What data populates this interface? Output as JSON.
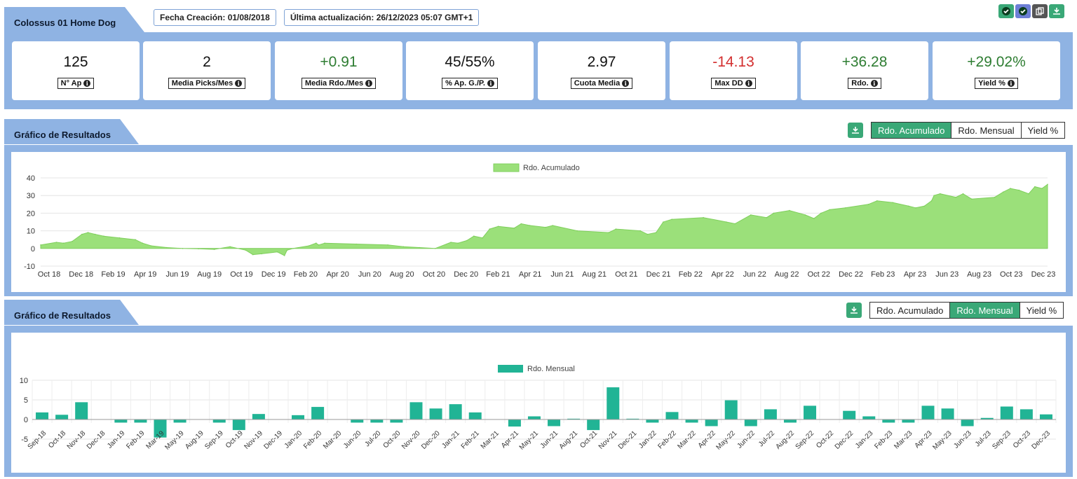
{
  "header": {
    "title": "Colossus 01 Home Dog",
    "creation": "Fecha Creación: 01/08/2018",
    "updated": "Última actualización: 26/12/2023 05:07 GMT+1"
  },
  "colors": {
    "accent": "#3aa877",
    "panel": "#8fb3e3",
    "positive": "#2e7d32",
    "negative": "#d32f2f",
    "area": "#9be07a",
    "bars": "#21b495"
  },
  "top_icons": [
    "check-icon",
    "check-icon",
    "copy-icon",
    "download-icon"
  ],
  "stats": [
    {
      "value": "125",
      "label": "N° Ap",
      "tone": "neutral"
    },
    {
      "value": "2",
      "label": "Media Picks/Mes",
      "tone": "neutral"
    },
    {
      "value": "+0.91",
      "label": "Media Rdo./Mes",
      "tone": "positive"
    },
    {
      "value": "45/55%",
      "label": "% Ap. G./P.",
      "tone": "neutral"
    },
    {
      "value": "2.97",
      "label": "Cuota Media",
      "tone": "neutral"
    },
    {
      "value": "-14.13",
      "label": "Max DD",
      "tone": "negative"
    },
    {
      "value": "+36.28",
      "label": "Rdo.",
      "tone": "positive"
    },
    {
      "value": "+29.02%",
      "label": "Yield %",
      "tone": "positive"
    }
  ],
  "section1": {
    "title": "Gráfico de Resultados",
    "buttons": [
      "Rdo. Acumulado",
      "Rdo. Mensual",
      "Yield %"
    ],
    "active": 0
  },
  "section2": {
    "title": "Gráfico de Resultados",
    "buttons": [
      "Rdo. Acumulado",
      "Rdo. Mensual",
      "Yield %"
    ],
    "active": 1
  },
  "chart_data": [
    {
      "type": "area",
      "legend": "Rdo. Acumulado",
      "legend_position": "top-center",
      "grid": true,
      "ylim": [
        -10,
        40
      ],
      "yticks": [
        -10,
        0,
        10,
        20,
        30,
        40
      ],
      "xlabels": [
        "Oct 18",
        "Dec 18",
        "Feb 19",
        "Apr 19",
        "Jun 19",
        "Aug 19",
        "Oct 19",
        "Dec 19",
        "Feb 20",
        "Apr 20",
        "Jun 20",
        "Aug 20",
        "Oct 20",
        "Dec 20",
        "Feb 21",
        "Apr 21",
        "Jun 21",
        "Aug 21",
        "Oct 21",
        "Dec 21",
        "Feb 22",
        "Apr 22",
        "Jun 22",
        "Aug 22",
        "Oct 22",
        "Dec 22",
        "Feb 23",
        "Apr 23",
        "Jun 23",
        "Aug 23",
        "Oct 23",
        "Dec 23"
      ],
      "x": [
        "2018-09-01",
        "2018-10-01",
        "2018-10-15",
        "2018-11-01",
        "2018-11-20",
        "2018-12-01",
        "2018-12-15",
        "2019-01-01",
        "2019-02-01",
        "2019-03-01",
        "2019-03-15",
        "2019-04-01",
        "2019-05-01",
        "2019-06-01",
        "2019-07-01",
        "2019-08-01",
        "2019-09-01",
        "2019-10-01",
        "2019-10-15",
        "2019-11-01",
        "2019-12-01",
        "2019-12-15",
        "2019-12-20",
        "2020-01-01",
        "2020-02-01",
        "2020-02-15",
        "2020-02-20",
        "2020-03-01",
        "2020-05-01",
        "2020-07-01",
        "2020-08-01",
        "2020-09-01",
        "2020-10-01",
        "2020-11-01",
        "2020-11-15",
        "2020-12-01",
        "2020-12-15",
        "2021-01-01",
        "2021-01-15",
        "2021-02-01",
        "2021-03-01",
        "2021-03-15",
        "2021-04-01",
        "2021-05-01",
        "2021-05-15",
        "2021-07-01",
        "2021-09-01",
        "2021-09-15",
        "2021-11-01",
        "2021-11-15",
        "2021-12-01",
        "2021-12-15",
        "2022-01-01",
        "2022-03-01",
        "2022-04-15",
        "2022-05-01",
        "2022-06-01",
        "2022-07-01",
        "2022-07-15",
        "2022-08-15",
        "2022-09-15",
        "2022-10-01",
        "2022-10-15",
        "2022-11-01",
        "2022-12-01",
        "2023-01-15",
        "2023-02-01",
        "2023-03-01",
        "2023-04-01",
        "2023-04-15",
        "2023-05-01",
        "2023-05-15",
        "2023-05-20",
        "2023-06-01",
        "2023-07-01",
        "2023-07-15",
        "2023-08-01",
        "2023-09-15",
        "2023-10-01",
        "2023-10-15",
        "2023-11-01",
        "2023-11-20",
        "2023-12-01",
        "2023-12-15",
        "2023-12-26"
      ],
      "y": [
        2,
        3.5,
        3,
        4,
        8,
        9,
        8,
        7,
        6,
        5,
        3,
        1.5,
        0.5,
        0,
        -0.2,
        -0.5,
        1,
        -1,
        -3.5,
        -3,
        -2,
        -4,
        -1,
        0,
        1.5,
        3,
        2,
        3,
        2.5,
        2,
        1,
        0.5,
        0,
        3.5,
        3,
        4.5,
        7,
        6,
        11,
        12.5,
        11.5,
        14,
        13,
        12,
        13,
        10,
        9,
        11,
        10,
        8,
        9,
        15,
        16.5,
        17.5,
        15,
        14,
        19,
        17.5,
        20,
        21.5,
        19,
        17,
        20,
        22,
        23,
        25,
        27,
        26,
        24,
        23,
        24,
        27,
        30,
        31,
        29,
        31,
        28,
        29,
        32,
        34,
        33,
        31,
        35,
        34,
        36.3
      ]
    },
    {
      "type": "bar",
      "legend": "Rdo. Mensual",
      "legend_position": "top-center",
      "grid": true,
      "ylim": [
        -10,
        10
      ],
      "yticks": [
        -5,
        0,
        5,
        10
      ],
      "categories": [
        "Sep-18",
        "Oct-18",
        "Nov-18",
        "Dec-18",
        "Jan-19",
        "Feb-19",
        "Mar-19",
        "May-19",
        "Aug-19",
        "Sep-19",
        "Oct-19",
        "Nov-19",
        "Dec-19",
        "Jan-20",
        "Feb-20",
        "Mar-20",
        "Jun-20",
        "Jul-20",
        "Oct-20",
        "Nov-20",
        "Dec-20",
        "Jan-21",
        "Feb-21",
        "Mar-21",
        "Apr-21",
        "May-21",
        "Jun-21",
        "Aug-21",
        "Oct-21",
        "Nov-21",
        "Dec-21",
        "Jan-22",
        "Feb-22",
        "Mar-22",
        "Apr-22",
        "May-22",
        "Jun-22",
        "Jul-22",
        "Aug-22",
        "Sep-22",
        "Oct-22",
        "Dec-22",
        "Jan-23",
        "Feb-23",
        "Mar-23",
        "Apr-23",
        "May-23",
        "Jun-23",
        "Jul-23",
        "Sep-23",
        "Oct-23",
        "Dec-23"
      ],
      "values": [
        1.8,
        1.2,
        4.4,
        0,
        -0.8,
        -0.8,
        -4.6,
        -0.8,
        0,
        -0.8,
        -2.7,
        1.4,
        0,
        1.1,
        3.2,
        0,
        -0.8,
        -0.8,
        -0.8,
        4.4,
        2.8,
        3.9,
        1.8,
        0,
        -1.8,
        0.8,
        -1.7,
        0.2,
        -2.7,
        8.2,
        0.2,
        -0.8,
        1.9,
        -0.8,
        -1.7,
        4.9,
        -1.7,
        2.6,
        -0.8,
        3.5,
        0,
        2.2,
        0.8,
        -0.8,
        -0.8,
        3.5,
        2.8,
        -1.7,
        0.4,
        3.3,
        2.6,
        1.3
      ]
    }
  ]
}
